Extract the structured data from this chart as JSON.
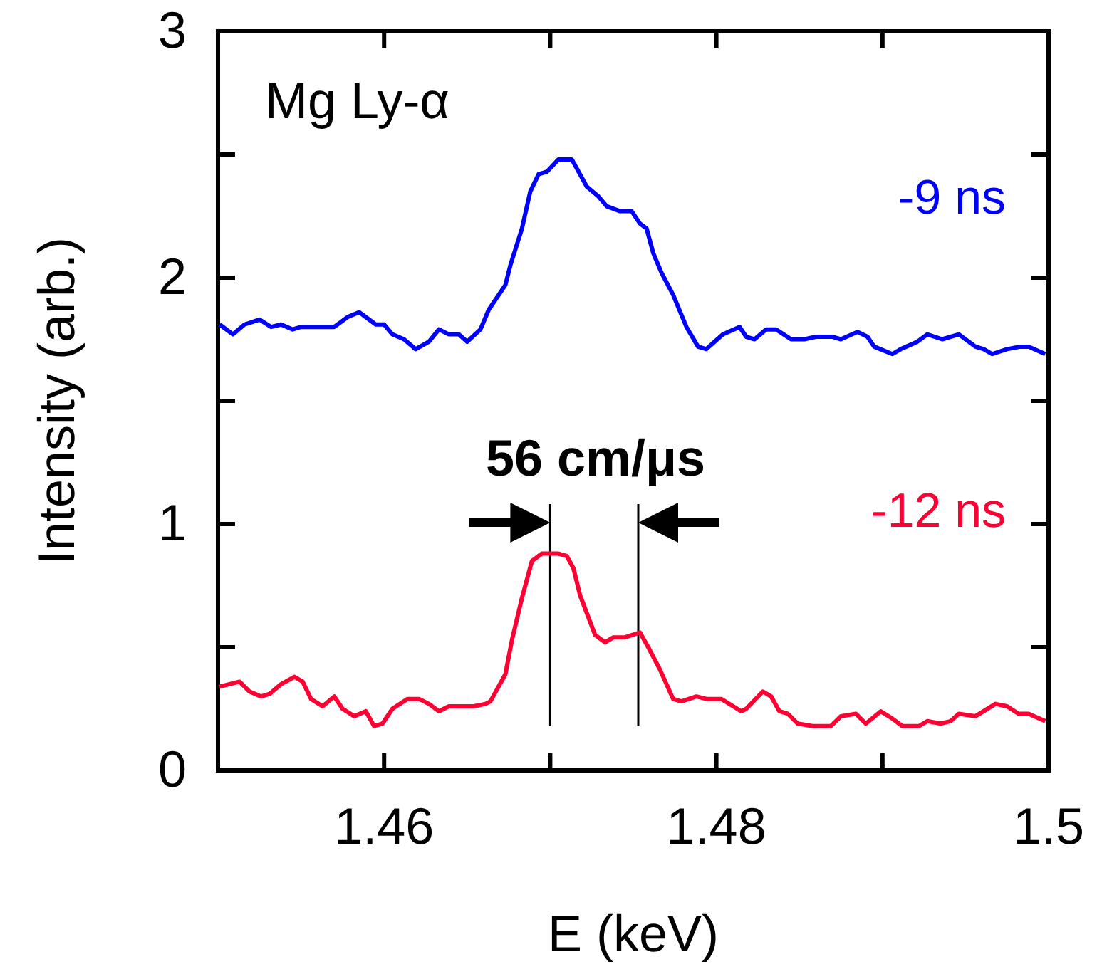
{
  "chart_data": {
    "type": "line",
    "xlabel": "E (keV)",
    "ylabel": "Intensity (arb.)",
    "annotations": [
      "Mg Ly-α",
      "56 cm/μs"
    ],
    "xlim": [
      1.45,
      1.5
    ],
    "ylim": [
      0,
      3
    ],
    "xticks": [
      {
        "value": 1.45,
        "label": null
      },
      1.46,
      {
        "value": 1.47,
        "label": null
      },
      1.48,
      {
        "value": 1.49,
        "label": null
      },
      1.5
    ],
    "yticks": [
      0,
      {
        "value": 0.5,
        "label": null
      },
      1,
      {
        "value": 1.5,
        "label": null
      },
      2,
      {
        "value": 2.5,
        "label": null
      },
      3
    ],
    "grid": false,
    "marker": "none",
    "line_style": "solid",
    "ref_lines": [
      {
        "axis": "x",
        "value": 1.47,
        "color": "#000000"
      },
      {
        "axis": "x",
        "value": 1.4753,
        "color": "#000000"
      }
    ],
    "series": [
      {
        "name": "-9 ns",
        "color": "#0000ff",
        "x": [
          1.4501,
          1.4509,
          1.4516,
          1.4525,
          1.4532,
          1.4538,
          1.4545,
          1.455,
          1.4556,
          1.457,
          1.4578,
          1.4585,
          1.4595,
          1.46,
          1.4605,
          1.4612,
          1.4619,
          1.4627,
          1.4633,
          1.4639,
          1.4645,
          1.465,
          1.4658,
          1.4663,
          1.4673,
          1.4676,
          1.4683,
          1.4688,
          1.4693,
          1.4698,
          1.4705,
          1.4713,
          1.4722,
          1.4729,
          1.4734,
          1.4742,
          1.4749,
          1.4754,
          1.4758,
          1.4762,
          1.4767,
          1.4774,
          1.4782,
          1.4789,
          1.4794,
          1.4804,
          1.4814,
          1.4818,
          1.4823,
          1.483,
          1.4836,
          1.4845,
          1.4853,
          1.486,
          1.487,
          1.4875,
          1.4885,
          1.4891,
          1.4895,
          1.4906,
          1.4911,
          1.4921,
          1.4927,
          1.4936,
          1.4946,
          1.4956,
          1.4961,
          1.4966,
          1.4975,
          1.4983,
          1.4988,
          1.4998
        ],
        "values": [
          1.81,
          1.77,
          1.81,
          1.83,
          1.8,
          1.81,
          1.79,
          1.8,
          1.8,
          1.8,
          1.84,
          1.86,
          1.81,
          1.81,
          1.77,
          1.75,
          1.71,
          1.74,
          1.79,
          1.77,
          1.77,
          1.74,
          1.79,
          1.87,
          1.97,
          2.05,
          2.2,
          2.35,
          2.42,
          2.43,
          2.48,
          2.48,
          2.37,
          2.33,
          2.29,
          2.27,
          2.27,
          2.22,
          2.2,
          2.1,
          2.02,
          1.93,
          1.8,
          1.72,
          1.71,
          1.77,
          1.8,
          1.76,
          1.75,
          1.79,
          1.79,
          1.75,
          1.75,
          1.76,
          1.76,
          1.75,
          1.78,
          1.76,
          1.72,
          1.69,
          1.71,
          1.74,
          1.77,
          1.75,
          1.77,
          1.72,
          1.71,
          1.69,
          1.71,
          1.72,
          1.72,
          1.69
        ]
      },
      {
        "name": "-12 ns",
        "color": "#ff0033",
        "x": [
          1.4501,
          1.4513,
          1.4519,
          1.4526,
          1.4531,
          1.4538,
          1.4546,
          1.4551,
          1.4556,
          1.4563,
          1.457,
          1.4575,
          1.4582,
          1.4589,
          1.4594,
          1.4599,
          1.4605,
          1.4614,
          1.4621,
          1.4627,
          1.4633,
          1.4639,
          1.4654,
          1.4661,
          1.4664,
          1.4673,
          1.4677,
          1.4683,
          1.4689,
          1.4695,
          1.4705,
          1.471,
          1.4714,
          1.4718,
          1.4727,
          1.4733,
          1.4738,
          1.4745,
          1.4754,
          1.4759,
          1.4766,
          1.4774,
          1.4779,
          1.4788,
          1.4794,
          1.4803,
          1.4815,
          1.4818,
          1.4828,
          1.4833,
          1.4838,
          1.4843,
          1.4849,
          1.4858,
          1.4869,
          1.4875,
          1.4884,
          1.489,
          1.4899,
          1.4906,
          1.4912,
          1.4922,
          1.4927,
          1.4935,
          1.4941,
          1.4946,
          1.4956,
          1.4968,
          1.4975,
          1.4982,
          1.4988,
          1.4998
        ],
        "values": [
          0.34,
          0.36,
          0.32,
          0.3,
          0.31,
          0.35,
          0.38,
          0.36,
          0.29,
          0.26,
          0.3,
          0.25,
          0.22,
          0.24,
          0.18,
          0.19,
          0.25,
          0.29,
          0.29,
          0.27,
          0.24,
          0.26,
          0.26,
          0.27,
          0.28,
          0.39,
          0.53,
          0.7,
          0.85,
          0.88,
          0.88,
          0.87,
          0.82,
          0.71,
          0.55,
          0.52,
          0.54,
          0.54,
          0.56,
          0.5,
          0.41,
          0.29,
          0.28,
          0.3,
          0.29,
          0.29,
          0.24,
          0.25,
          0.32,
          0.3,
          0.24,
          0.23,
          0.19,
          0.18,
          0.18,
          0.22,
          0.23,
          0.19,
          0.24,
          0.21,
          0.18,
          0.18,
          0.2,
          0.19,
          0.2,
          0.23,
          0.22,
          0.27,
          0.26,
          0.23,
          0.23,
          0.2
        ]
      }
    ]
  }
}
